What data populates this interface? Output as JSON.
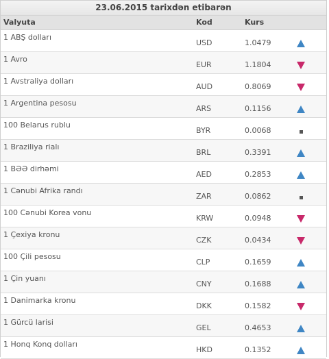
{
  "title": "23.06.2015 tarixdən etibarən",
  "headers": {
    "currency": "Valyuta",
    "code": "Kod",
    "rate": "Kurs"
  },
  "colors": {
    "up": "#3f86c4",
    "down": "#c8296a",
    "flat": "#555555"
  },
  "rows": [
    {
      "name": "1 ABŞ dolları",
      "code": "USD",
      "rate": "1.0479",
      "trend": "up"
    },
    {
      "name": "1 Avro",
      "code": "EUR",
      "rate": "1.1804",
      "trend": "down"
    },
    {
      "name": "1 Avstraliya dolları",
      "code": "AUD",
      "rate": "0.8069",
      "trend": "down"
    },
    {
      "name": "1 Argentina pesosu",
      "code": "ARS",
      "rate": "0.1156",
      "trend": "up"
    },
    {
      "name": "100 Belarus rublu",
      "code": "BYR",
      "rate": "0.0068",
      "trend": "flat"
    },
    {
      "name": "1 Braziliya rialı",
      "code": "BRL",
      "rate": "0.3391",
      "trend": "up"
    },
    {
      "name": "1 BƏƏ dirhəmi",
      "code": "AED",
      "rate": "0.2853",
      "trend": "up"
    },
    {
      "name": "1 Cənubi Afrika randı",
      "code": "ZAR",
      "rate": "0.0862",
      "trend": "flat"
    },
    {
      "name": "100 Cənubi Korea vonu",
      "code": "KRW",
      "rate": "0.0948",
      "trend": "down"
    },
    {
      "name": "1 Çexiya kronu",
      "code": "CZK",
      "rate": "0.0434",
      "trend": "down"
    },
    {
      "name": "100 Çili pesosu",
      "code": "CLP",
      "rate": "0.1659",
      "trend": "up"
    },
    {
      "name": "1 Çin yuanı",
      "code": "CNY",
      "rate": "0.1688",
      "trend": "up"
    },
    {
      "name": "1 Danimarka kronu",
      "code": "DKK",
      "rate": "0.1582",
      "trend": "down"
    },
    {
      "name": "1 Gürcü larisi",
      "code": "GEL",
      "rate": "0.4653",
      "trend": "up"
    },
    {
      "name": "1 Honq Konq dolları",
      "code": "HKD",
      "rate": "0.1352",
      "trend": "up"
    }
  ]
}
